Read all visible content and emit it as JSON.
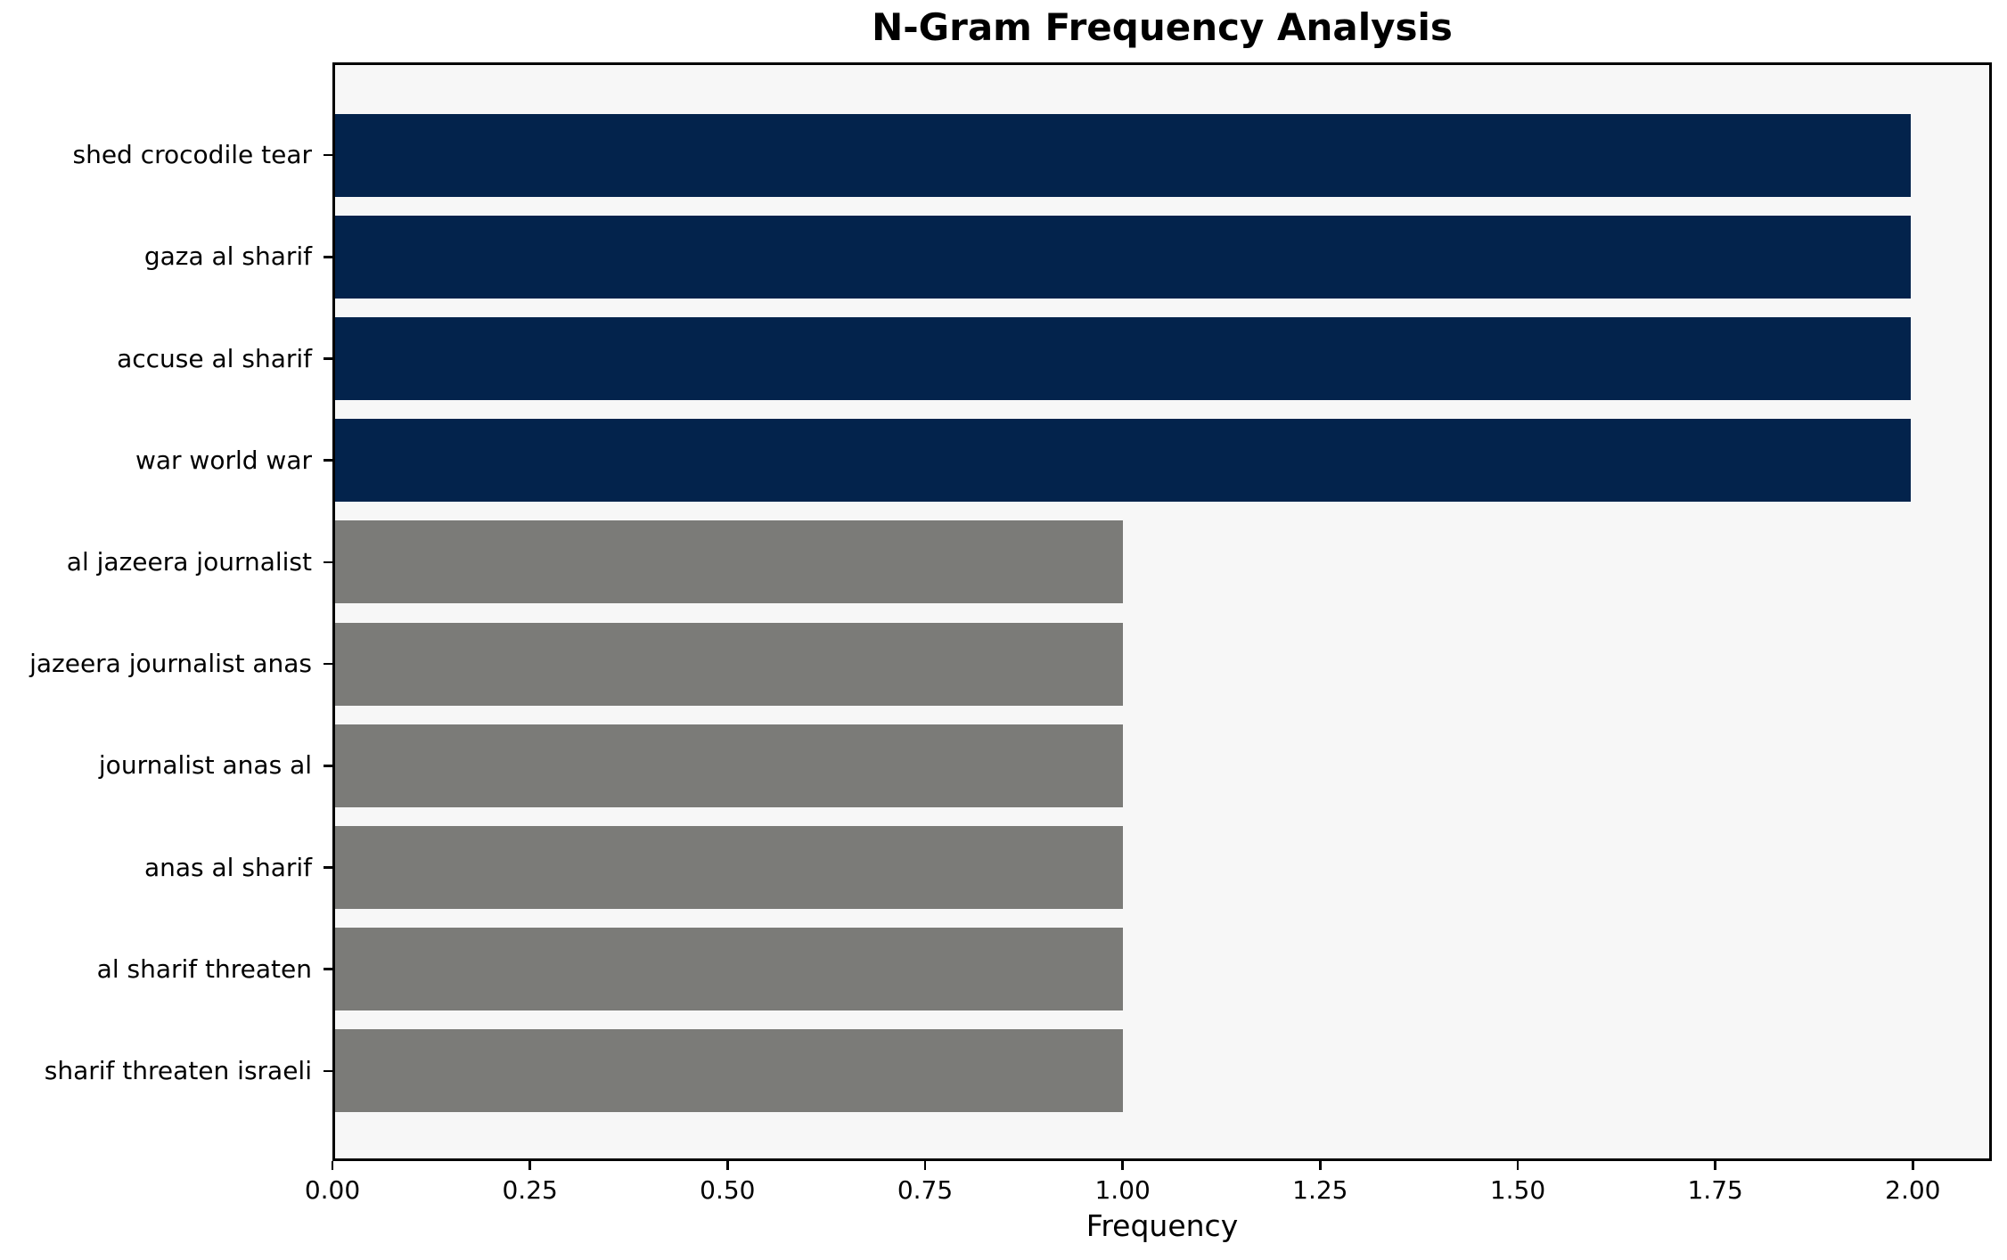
{
  "chart_data": {
    "type": "bar",
    "orientation": "horizontal",
    "title": "N-Gram Frequency Analysis",
    "xlabel": "Frequency",
    "ylabel": "",
    "categories": [
      "shed crocodile tear",
      "gaza al sharif",
      "accuse al sharif",
      "war world war",
      "al jazeera journalist",
      "jazeera journalist anas",
      "journalist anas al",
      "anas al sharif",
      "al sharif threaten",
      "sharif threaten israeli"
    ],
    "values": [
      2,
      2,
      2,
      2,
      1,
      1,
      1,
      1,
      1,
      1
    ],
    "bar_colors": [
      "#03234c",
      "#03234c",
      "#03234c",
      "#03234c",
      "#7b7b78",
      "#7b7b78",
      "#7b7b78",
      "#7b7b78",
      "#7b7b78",
      "#7b7b78"
    ],
    "xlim": [
      0,
      2.1
    ],
    "xtick_values": [
      0,
      0.25,
      0.5,
      0.75,
      1.0,
      1.25,
      1.5,
      1.75,
      2.0
    ],
    "xtick_labels": [
      "0.00",
      "0.25",
      "0.50",
      "0.75",
      "1.00",
      "1.25",
      "1.50",
      "1.75",
      "2.00"
    ],
    "grid": false,
    "legend": "none",
    "plot_background": "#f7f7f7",
    "figure_background": "#ffffff",
    "axis_color": "#000000",
    "palette": {
      "high_freq": "#03234c",
      "low_freq": "#7b7b78"
    }
  }
}
